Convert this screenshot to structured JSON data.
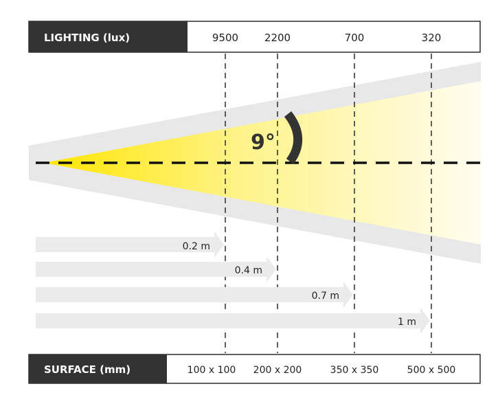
{
  "lighting": {
    "label": "LIGHTING (lux)",
    "values": [
      "9500",
      "2200",
      "700",
      "320"
    ]
  },
  "angle": {
    "label": "9°"
  },
  "distances": [
    "0.2 m",
    "0.4 m",
    "0.7 m",
    "1 m"
  ],
  "surface": {
    "label": "SURFACE (mm)",
    "values": [
      "100 x 100",
      "200 x 200",
      "350 x 350",
      "500 x 500"
    ]
  },
  "colors": {
    "header_bg": "#333333",
    "beam_yellow": "#ffe600",
    "cone_gray": "#e8e8e8",
    "arrow_gray": "#ebebeb",
    "line": "#2b2b2b"
  }
}
